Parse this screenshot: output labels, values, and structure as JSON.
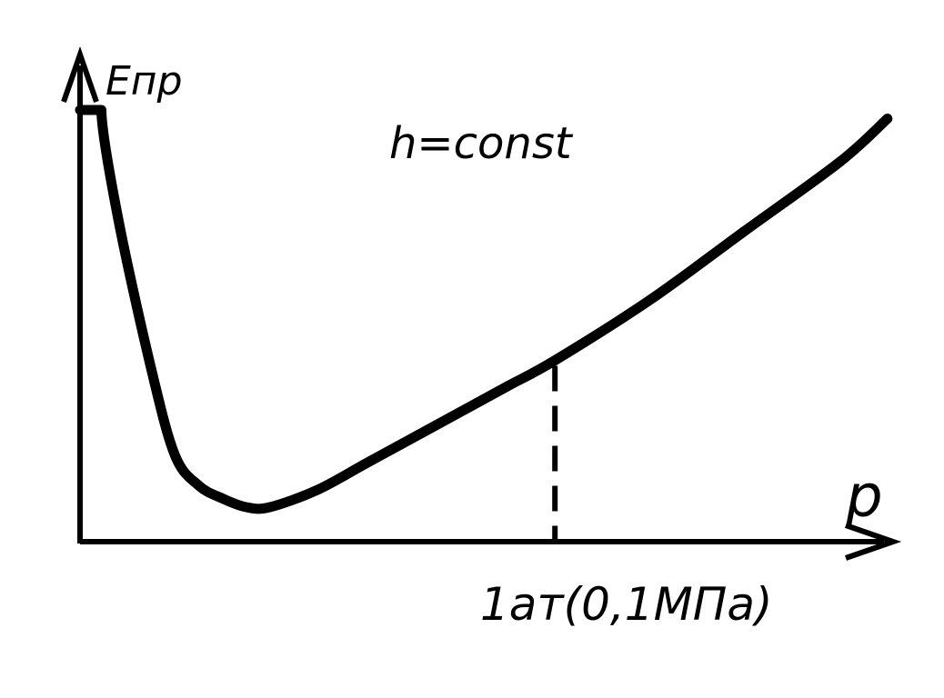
{
  "chart_data": {
    "type": "line",
    "title": "",
    "xlabel": "p",
    "ylabel": "Eпр",
    "annotation": "h=const",
    "reference_tick_label": "1ат(0,1МПа)",
    "reference_x": 1,
    "x": [
      0,
      0.045,
      0.08,
      0.15,
      0.2,
      0.25,
      0.3,
      0.35,
      0.4,
      0.5,
      0.6,
      0.7,
      0.8,
      0.9,
      1.0,
      1.2,
      1.4,
      1.6,
      1.7
    ],
    "y": [
      1.0,
      1.0,
      0.75,
      0.4,
      0.2,
      0.13,
      0.1,
      0.08,
      0.08,
      0.12,
      0.18,
      0.24,
      0.3,
      0.36,
      0.42,
      0.56,
      0.72,
      0.88,
      0.98
    ],
    "xlim": [
      0,
      1.8
    ],
    "ylim": [
      0,
      1.2
    ],
    "grid": false,
    "colors": {
      "line": "#000000",
      "background": "#ffffff"
    }
  }
}
